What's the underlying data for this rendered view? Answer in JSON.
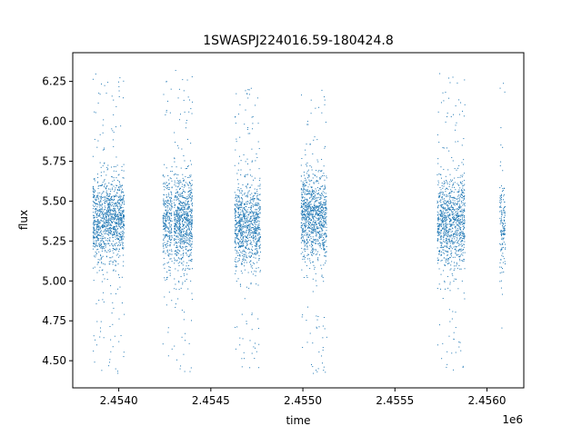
{
  "chart_data": {
    "type": "scatter",
    "title": "1SWASPJ224016.59-180424.8",
    "xlabel": "time",
    "ylabel": "flux",
    "x_offset_label": "1e6",
    "x_scale": 1000000,
    "xlim": [
      2.45375,
      2.4562
    ],
    "ylim": [
      4.33,
      6.43
    ],
    "x_ticks": [
      2.454,
      2.4545,
      2.455,
      2.4555,
      2.456
    ],
    "x_tick_labels": [
      "2.4540",
      "2.4545",
      "2.4550",
      "2.4555",
      "2.4560"
    ],
    "y_ticks": [
      4.5,
      4.75,
      5.0,
      5.25,
      5.5,
      5.75,
      6.0,
      6.25
    ],
    "y_tick_labels": [
      "4.50",
      "4.75",
      "5.00",
      "5.25",
      "5.50",
      "5.75",
      "6.00",
      "6.25"
    ],
    "grid": false,
    "marker_color": "#1f77b4",
    "series": [
      {
        "clusters": [
          {
            "x_range": [
              2.45386,
              2.45403
            ],
            "center": 5.38,
            "spread": 0.13,
            "n": 1200,
            "y_min": 4.4,
            "y_max": 6.3
          },
          {
            "x_range": [
              2.45424,
              2.45429
            ],
            "center": 5.38,
            "spread": 0.14,
            "n": 320,
            "y_min": 4.45,
            "y_max": 6.3
          },
          {
            "x_range": [
              2.4543,
              2.4544
            ],
            "center": 5.37,
            "spread": 0.14,
            "n": 800,
            "y_min": 4.41,
            "y_max": 6.32
          },
          {
            "x_range": [
              2.45463,
              2.45477
            ],
            "center": 5.36,
            "spread": 0.13,
            "n": 950,
            "y_min": 4.42,
            "y_max": 6.22
          },
          {
            "x_range": [
              2.45499,
              2.45513
            ],
            "center": 5.4,
            "spread": 0.13,
            "n": 1000,
            "y_min": 4.42,
            "y_max": 6.2
          },
          {
            "x_range": [
              2.45573,
              2.45588
            ],
            "center": 5.37,
            "spread": 0.14,
            "n": 1000,
            "y_min": 4.42,
            "y_max": 6.3
          },
          {
            "x_range": [
              2.45607,
              2.4561
            ],
            "center": 5.36,
            "spread": 0.15,
            "n": 150,
            "y_min": 4.62,
            "y_max": 6.25
          }
        ]
      }
    ]
  }
}
